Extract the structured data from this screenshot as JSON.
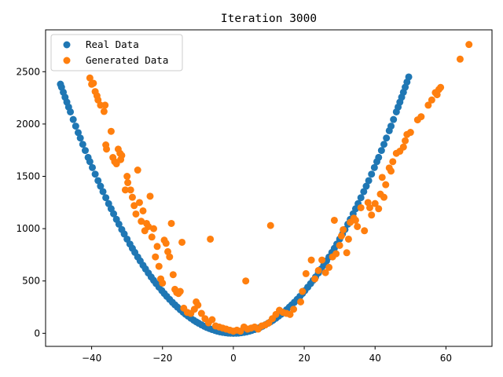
{
  "chart_data": {
    "type": "scatter",
    "title": "Iteration 3000",
    "xlabel": "",
    "ylabel": "",
    "xlim": [
      -53,
      73
    ],
    "ylim": [
      -125,
      2900
    ],
    "xticks": [
      -40,
      -20,
      0,
      20,
      40,
      60
    ],
    "yticks": [
      0,
      500,
      1000,
      1500,
      2000,
      2500
    ],
    "xtick_labels": [
      "−40",
      "−20",
      "0",
      "20",
      "40",
      "60"
    ],
    "ytick_labels": [
      "0",
      "500",
      "1000",
      "1500",
      "2000",
      "2500"
    ],
    "grid": false,
    "legend": {
      "placement": "top-left"
    },
    "series": [
      {
        "name": "Real Data",
        "color": "#1f77b4",
        "points": [
          [
            -48.8,
            2381
          ],
          [
            -48.5,
            2352
          ],
          [
            -48,
            2304
          ],
          [
            -47.5,
            2256
          ],
          [
            -47,
            2209
          ],
          [
            -46.5,
            2162
          ],
          [
            -46,
            2116
          ],
          [
            -45.2,
            2043
          ],
          [
            -44.5,
            1980
          ],
          [
            -43.8,
            1918
          ],
          [
            -43.2,
            1866
          ],
          [
            -42.5,
            1806
          ],
          [
            -41.8,
            1747
          ],
          [
            -41,
            1681
          ],
          [
            -40.5,
            1640
          ],
          [
            -39.8,
            1584
          ],
          [
            -39,
            1521
          ],
          [
            -38.2,
            1459
          ],
          [
            -37.5,
            1406
          ],
          [
            -36.8,
            1354
          ],
          [
            -36,
            1296
          ],
          [
            -35.2,
            1239
          ],
          [
            -34.5,
            1190
          ],
          [
            -33.8,
            1142
          ],
          [
            -33,
            1089
          ],
          [
            -32.3,
            1043
          ],
          [
            -31.5,
            992
          ],
          [
            -30.8,
            949
          ],
          [
            -30,
            900
          ],
          [
            -29.2,
            853
          ],
          [
            -28.5,
            812
          ],
          [
            -27.8,
            773
          ],
          [
            -27,
            729
          ],
          [
            -26.3,
            692
          ],
          [
            -25.5,
            650
          ],
          [
            -24.8,
            615
          ],
          [
            -24,
            576
          ],
          [
            -23.2,
            538
          ],
          [
            -22.5,
            506
          ],
          [
            -21.8,
            475
          ],
          [
            -21,
            441
          ],
          [
            -20.2,
            408
          ],
          [
            -19.5,
            380
          ],
          [
            -18.8,
            353
          ],
          [
            -18,
            324
          ],
          [
            -17.2,
            296
          ],
          [
            -16.5,
            272
          ],
          [
            -15.8,
            250
          ],
          [
            -15,
            225
          ],
          [
            -14.2,
            202
          ],
          [
            -13.5,
            182
          ],
          [
            -12.8,
            164
          ],
          [
            -12,
            144
          ],
          [
            -11.2,
            125
          ],
          [
            -10.5,
            110
          ],
          [
            -9.8,
            96
          ],
          [
            -9,
            81
          ],
          [
            -8.2,
            67
          ],
          [
            -7.5,
            56
          ],
          [
            -6.8,
            46
          ],
          [
            -6,
            36
          ],
          [
            -5.2,
            27
          ],
          [
            -4.5,
            20
          ],
          [
            -3.8,
            14
          ],
          [
            -3,
            9
          ],
          [
            -2.2,
            5
          ],
          [
            -1.5,
            2
          ],
          [
            -0.8,
            1
          ],
          [
            0,
            0
          ],
          [
            0.8,
            1
          ],
          [
            1.5,
            2
          ],
          [
            2.2,
            5
          ],
          [
            3,
            9
          ],
          [
            3.8,
            14
          ],
          [
            4.5,
            20
          ],
          [
            5.2,
            27
          ],
          [
            6,
            36
          ],
          [
            6.8,
            46
          ],
          [
            7.5,
            56
          ],
          [
            8.2,
            67
          ],
          [
            9,
            81
          ],
          [
            9.8,
            96
          ],
          [
            10.5,
            110
          ],
          [
            11.2,
            125
          ],
          [
            12,
            144
          ],
          [
            12.8,
            164
          ],
          [
            13.5,
            182
          ],
          [
            14.2,
            202
          ],
          [
            15,
            225
          ],
          [
            15.8,
            250
          ],
          [
            16.5,
            272
          ],
          [
            17.2,
            296
          ],
          [
            18,
            324
          ],
          [
            18.8,
            353
          ],
          [
            19.5,
            380
          ],
          [
            20.2,
            408
          ],
          [
            21,
            441
          ],
          [
            21.8,
            475
          ],
          [
            22.5,
            506
          ],
          [
            23.2,
            538
          ],
          [
            24,
            576
          ],
          [
            24.8,
            615
          ],
          [
            25.5,
            650
          ],
          [
            26.3,
            692
          ],
          [
            27,
            729
          ],
          [
            27.8,
            773
          ],
          [
            28.5,
            812
          ],
          [
            29.2,
            853
          ],
          [
            30,
            900
          ],
          [
            30.8,
            949
          ],
          [
            31.5,
            992
          ],
          [
            32.3,
            1043
          ],
          [
            33,
            1089
          ],
          [
            33.8,
            1142
          ],
          [
            34.5,
            1190
          ],
          [
            35.2,
            1239
          ],
          [
            36,
            1296
          ],
          [
            36.8,
            1354
          ],
          [
            37.5,
            1406
          ],
          [
            38.2,
            1459
          ],
          [
            39,
            1521
          ],
          [
            39.8,
            1584
          ],
          [
            40.5,
            1640
          ],
          [
            41,
            1681
          ],
          [
            41.8,
            1747
          ],
          [
            42.5,
            1806
          ],
          [
            43.2,
            1866
          ],
          [
            44,
            1936
          ],
          [
            44.5,
            1980
          ],
          [
            45.2,
            2043
          ],
          [
            46,
            2116
          ],
          [
            46.5,
            2162
          ],
          [
            47,
            2209
          ],
          [
            47.5,
            2256
          ],
          [
            48,
            2304
          ],
          [
            48.5,
            2352
          ],
          [
            49,
            2401
          ],
          [
            49.5,
            2450
          ]
        ]
      },
      {
        "name": "Generated Data",
        "color": "#ff7f0e",
        "points": [
          [
            -40.5,
            2440
          ],
          [
            -40,
            2380
          ],
          [
            -39.5,
            2390
          ],
          [
            -39,
            2310
          ],
          [
            -38.5,
            2270
          ],
          [
            -38.2,
            2230
          ],
          [
            -37.5,
            2180
          ],
          [
            -36.5,
            2120
          ],
          [
            -36.2,
            2180
          ],
          [
            -36,
            1800
          ],
          [
            -35.8,
            1760
          ],
          [
            -34.5,
            1930
          ],
          [
            -34,
            1680
          ],
          [
            -33.5,
            1640
          ],
          [
            -33,
            1620
          ],
          [
            -32.5,
            1760
          ],
          [
            -32,
            1720
          ],
          [
            -31.5,
            1700
          ],
          [
            -31.8,
            1660
          ],
          [
            -30,
            1500
          ],
          [
            -30.5,
            1370
          ],
          [
            -29.8,
            1440
          ],
          [
            -29,
            1370
          ],
          [
            -28.5,
            1300
          ],
          [
            -28,
            1220
          ],
          [
            -27.5,
            1140
          ],
          [
            -27,
            1560
          ],
          [
            -26.5,
            1250
          ],
          [
            -26,
            1070
          ],
          [
            -25.5,
            1170
          ],
          [
            -25,
            980
          ],
          [
            -24.5,
            1050
          ],
          [
            -24,
            1020
          ],
          [
            -23.5,
            1310
          ],
          [
            -23,
            920
          ],
          [
            -22.5,
            1000
          ],
          [
            -22,
            730
          ],
          [
            -21.5,
            830
          ],
          [
            -21,
            640
          ],
          [
            -20.5,
            520
          ],
          [
            -20,
            480
          ],
          [
            -19.5,
            890
          ],
          [
            -19,
            860
          ],
          [
            -18.5,
            780
          ],
          [
            -18,
            730
          ],
          [
            -17.5,
            1050
          ],
          [
            -17,
            560
          ],
          [
            -16.5,
            420
          ],
          [
            -16,
            390
          ],
          [
            -15.5,
            380
          ],
          [
            -15,
            400
          ],
          [
            -14.5,
            870
          ],
          [
            -14,
            240
          ],
          [
            -13,
            200
          ],
          [
            -12,
            190
          ],
          [
            -11,
            230
          ],
          [
            -10.5,
            300
          ],
          [
            -10,
            270
          ],
          [
            -9,
            190
          ],
          [
            -8,
            140
          ],
          [
            -7,
            100
          ],
          [
            -6.5,
            900
          ],
          [
            -6,
            130
          ],
          [
            -5,
            70
          ],
          [
            -4,
            60
          ],
          [
            -3,
            50
          ],
          [
            -2,
            40
          ],
          [
            -1,
            30
          ],
          [
            0,
            20
          ],
          [
            1,
            30
          ],
          [
            2,
            20
          ],
          [
            3,
            60
          ],
          [
            3.5,
            500
          ],
          [
            4,
            40
          ],
          [
            5,
            50
          ],
          [
            6,
            60
          ],
          [
            7,
            40
          ],
          [
            8,
            70
          ],
          [
            9,
            80
          ],
          [
            10,
            100
          ],
          [
            10.5,
            1030
          ],
          [
            11,
            140
          ],
          [
            12,
            180
          ],
          [
            13,
            220
          ],
          [
            14,
            200
          ],
          [
            15,
            190
          ],
          [
            16,
            180
          ],
          [
            17,
            230
          ],
          [
            19,
            300
          ],
          [
            19.5,
            400
          ],
          [
            20.5,
            570
          ],
          [
            22,
            700
          ],
          [
            23,
            520
          ],
          [
            24,
            600
          ],
          [
            25,
            700
          ],
          [
            26,
            580
          ],
          [
            27,
            630
          ],
          [
            28,
            730
          ],
          [
            28.5,
            1080
          ],
          [
            29,
            760
          ],
          [
            30,
            840
          ],
          [
            30.5,
            930
          ],
          [
            31,
            990
          ],
          [
            32,
            770
          ],
          [
            32.5,
            900
          ],
          [
            33,
            1060
          ],
          [
            34,
            1100
          ],
          [
            34.5,
            1080
          ],
          [
            35,
            1020
          ],
          [
            36,
            1200
          ],
          [
            37,
            980
          ],
          [
            38,
            1250
          ],
          [
            38.5,
            1200
          ],
          [
            39,
            1130
          ],
          [
            40,
            1240
          ],
          [
            41,
            1190
          ],
          [
            41.5,
            1330
          ],
          [
            42,
            1490
          ],
          [
            42.5,
            1300
          ],
          [
            43,
            1420
          ],
          [
            44,
            1580
          ],
          [
            44.5,
            1550
          ],
          [
            45,
            1640
          ],
          [
            46,
            1720
          ],
          [
            47,
            1740
          ],
          [
            48,
            1780
          ],
          [
            48.5,
            1840
          ],
          [
            49,
            1900
          ],
          [
            50,
            1920
          ],
          [
            52,
            2040
          ],
          [
            53,
            2070
          ],
          [
            55,
            2180
          ],
          [
            56,
            2230
          ],
          [
            57,
            2300
          ],
          [
            57.5,
            2280
          ],
          [
            58,
            2330
          ],
          [
            58.5,
            2350
          ],
          [
            64,
            2620
          ],
          [
            66.5,
            2760
          ]
        ]
      }
    ]
  }
}
